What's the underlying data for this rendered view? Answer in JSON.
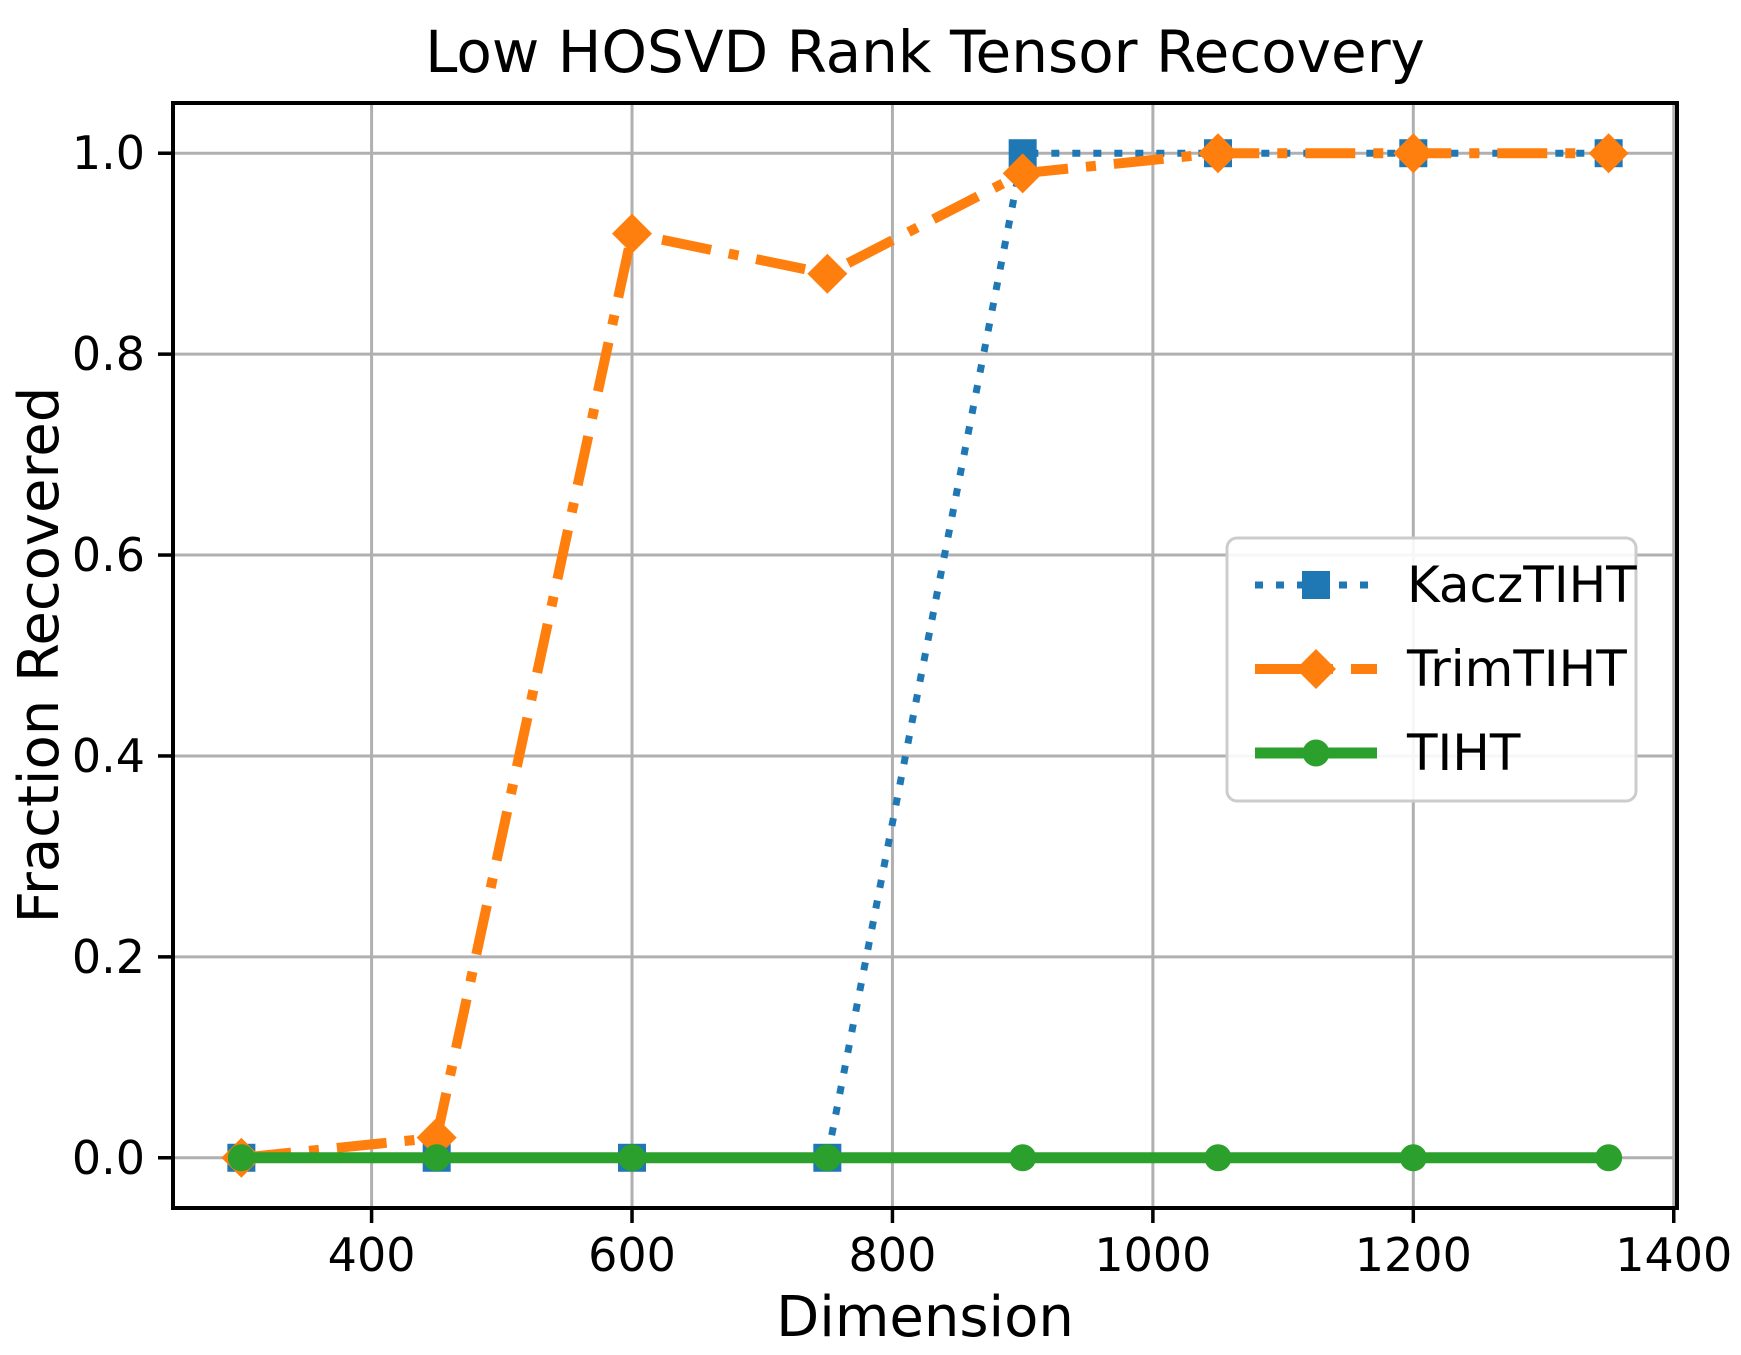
{
  "figure": {
    "title": "Low HOSVD Rank Tensor Recovery",
    "xlabel": "Dimension",
    "ylabel": "Fraction Recovered"
  },
  "chart_data": {
    "type": "line",
    "title": "Low HOSVD Rank Tensor Recovery",
    "xlabel": "Dimension",
    "ylabel": "Fraction Recovered",
    "x": [
      300,
      450,
      600,
      750,
      900,
      1050,
      1200,
      1350
    ],
    "series": [
      {
        "name": "KaczTIHT",
        "color": "#1f77b4",
        "linestyle": "dotted",
        "marker": "square",
        "values": [
          0.0,
          0.0,
          0.0,
          0.0,
          1.0,
          1.0,
          1.0,
          1.0
        ]
      },
      {
        "name": "TrimTIHT",
        "color": "#ff7f0e",
        "linestyle": "dashdot",
        "marker": "diamond",
        "values": [
          0.0,
          0.02,
          0.92,
          0.88,
          0.98,
          1.0,
          1.0,
          1.0
        ]
      },
      {
        "name": "TIHT",
        "color": "#2ca02c",
        "linestyle": "solid",
        "marker": "circle",
        "values": [
          0.0,
          0.0,
          0.0,
          0.0,
          0.0,
          0.0,
          0.0,
          0.0
        ]
      }
    ],
    "xticks": [
      400,
      600,
      800,
      1000,
      1200,
      1400
    ],
    "xtick_labels": [
      "400",
      "600",
      "800",
      "1000",
      "1200",
      "1400"
    ],
    "yticks": [
      0.0,
      0.2,
      0.4,
      0.6,
      0.8,
      1.0
    ],
    "ytick_labels": [
      "0.0",
      "0.2",
      "0.4",
      "0.6",
      "0.8",
      "1.0"
    ],
    "xlim": [
      247.5,
      1402.5
    ],
    "ylim": [
      -0.05,
      1.05
    ],
    "grid": true,
    "grid_color": "#b0b0b0",
    "spine_color": "#000000",
    "legend_position": "center right",
    "legend_border_color": "#cccccc",
    "legend_background": "#ffffff"
  }
}
